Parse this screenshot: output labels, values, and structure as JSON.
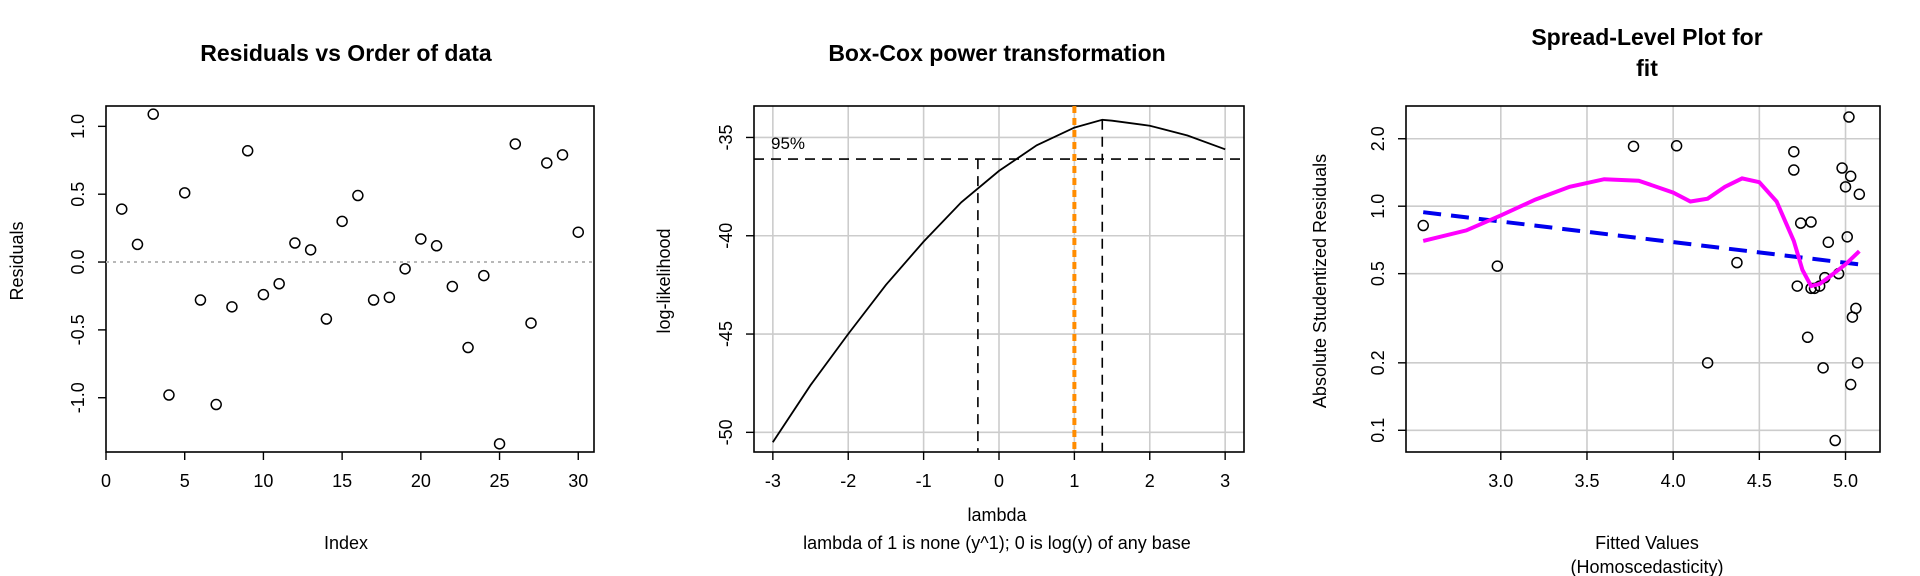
{
  "chart_data": [
    {
      "type": "scatter",
      "title": "Residuals vs Order of data",
      "xlabel": "Index",
      "ylabel": "Residuals",
      "xlim": [
        0,
        31
      ],
      "ylim": [
        -1.4,
        1.15
      ],
      "x_ticks": [
        "0",
        "5",
        "10",
        "15",
        "20",
        "25",
        "30"
      ],
      "y_ticks": [
        "-1.0",
        "-0.5",
        "0.0",
        "0.5",
        "1.0"
      ],
      "reference_line": 0,
      "grid": false,
      "x": [
        1,
        2,
        3,
        4,
        5,
        6,
        7,
        8,
        9,
        10,
        11,
        12,
        13,
        14,
        15,
        16,
        17,
        18,
        19,
        20,
        21,
        22,
        23,
        24,
        25,
        26,
        27,
        28,
        29,
        30
      ],
      "y": [
        0.39,
        0.13,
        1.09,
        -0.98,
        0.51,
        -0.28,
        -1.05,
        -0.33,
        0.82,
        -0.24,
        -0.16,
        0.14,
        0.09,
        -0.42,
        0.3,
        0.49,
        -0.28,
        -0.26,
        -0.05,
        0.17,
        0.12,
        -0.18,
        -0.63,
        -0.1,
        -1.34,
        0.87,
        -0.45,
        0.73,
        0.79,
        0.22
      ]
    },
    {
      "type": "line",
      "title": "Box-Cox power transformation",
      "xlabel": "lambda",
      "subtitle": "lambda of 1 is none (y^1); 0 is log(y) of any base",
      "ylabel": "log-likelihood",
      "xlim": [
        -3.25,
        3.25
      ],
      "ylim": [
        -51.0,
        -33.4
      ],
      "x_ticks": [
        "-3",
        "-2",
        "-1",
        "0",
        "1",
        "2",
        "3"
      ],
      "y_ticks": [
        "-50",
        "-45",
        "-40",
        "-35"
      ],
      "grid": true,
      "lambda_hat": 1.37,
      "ci_lower": -0.28,
      "ci_upper": 1.37,
      "ci_level_label": "95%",
      "ci_loglik": -36.1,
      "reference_lambda": 1,
      "x": [
        -3,
        -2.5,
        -2,
        -1.5,
        -1,
        -0.5,
        0,
        0.5,
        1,
        1.37,
        1.5,
        2,
        2.5,
        3
      ],
      "y": [
        -50.5,
        -47.6,
        -45.0,
        -42.5,
        -40.3,
        -38.3,
        -36.7,
        -35.4,
        -34.5,
        -34.1,
        -34.15,
        -34.4,
        -34.9,
        -35.6
      ]
    },
    {
      "type": "scatter",
      "title": "Spread-Level Plot for",
      "title_line2": "fit",
      "xlabel": "Fitted Values",
      "xlabel_line2": "(Homoscedasticity)",
      "ylabel": "Absolute Studentized Residuals",
      "xlim": [
        2.45,
        5.2
      ],
      "ylim": [
        0.08,
        2.8
      ],
      "y_scale": "log",
      "x_ticks": [
        "3.0",
        "3.5",
        "4.0",
        "4.5",
        "5.0"
      ],
      "y_ticks": [
        "0.1",
        "0.2",
        "0.5",
        "1.0",
        "2.0"
      ],
      "grid": true,
      "x": [
        2.55,
        2.98,
        3.77,
        4.02,
        4.2,
        4.37,
        4.7,
        4.7,
        4.72,
        4.74,
        4.78,
        4.8,
        4.8,
        4.82,
        4.85,
        4.87,
        4.88,
        4.9,
        4.94,
        4.96,
        4.98,
        5.0,
        5.01,
        5.02,
        5.03,
        5.03,
        5.04,
        5.06,
        5.07,
        5.08
      ],
      "y": [
        0.82,
        0.54,
        1.85,
        1.86,
        0.2,
        0.56,
        1.75,
        1.45,
        0.44,
        0.84,
        0.26,
        0.85,
        0.43,
        0.43,
        0.44,
        0.19,
        0.48,
        0.69,
        0.09,
        0.5,
        1.48,
        1.22,
        0.73,
        2.5,
        1.36,
        0.16,
        0.32,
        0.35,
        0.2,
        1.13
      ],
      "series": [
        {
          "name": "",
          "color": "#0000ee",
          "style": "dashed",
          "x": [
            2.55,
            5.08
          ],
          "y": [
            0.94,
            0.55
          ]
        },
        {
          "name": "",
          "color": "#ff00ff",
          "style": "solid",
          "x": [
            2.55,
            2.8,
            3.0,
            3.2,
            3.4,
            3.6,
            3.8,
            4.0,
            4.1,
            4.2,
            4.3,
            4.4,
            4.5,
            4.6,
            4.7,
            4.75,
            4.8,
            4.85,
            4.9,
            5.0,
            5.08
          ],
          "y": [
            0.7,
            0.78,
            0.91,
            1.07,
            1.22,
            1.32,
            1.3,
            1.15,
            1.05,
            1.08,
            1.22,
            1.33,
            1.28,
            1.05,
            0.7,
            0.52,
            0.44,
            0.45,
            0.48,
            0.55,
            0.63
          ]
        }
      ]
    }
  ]
}
